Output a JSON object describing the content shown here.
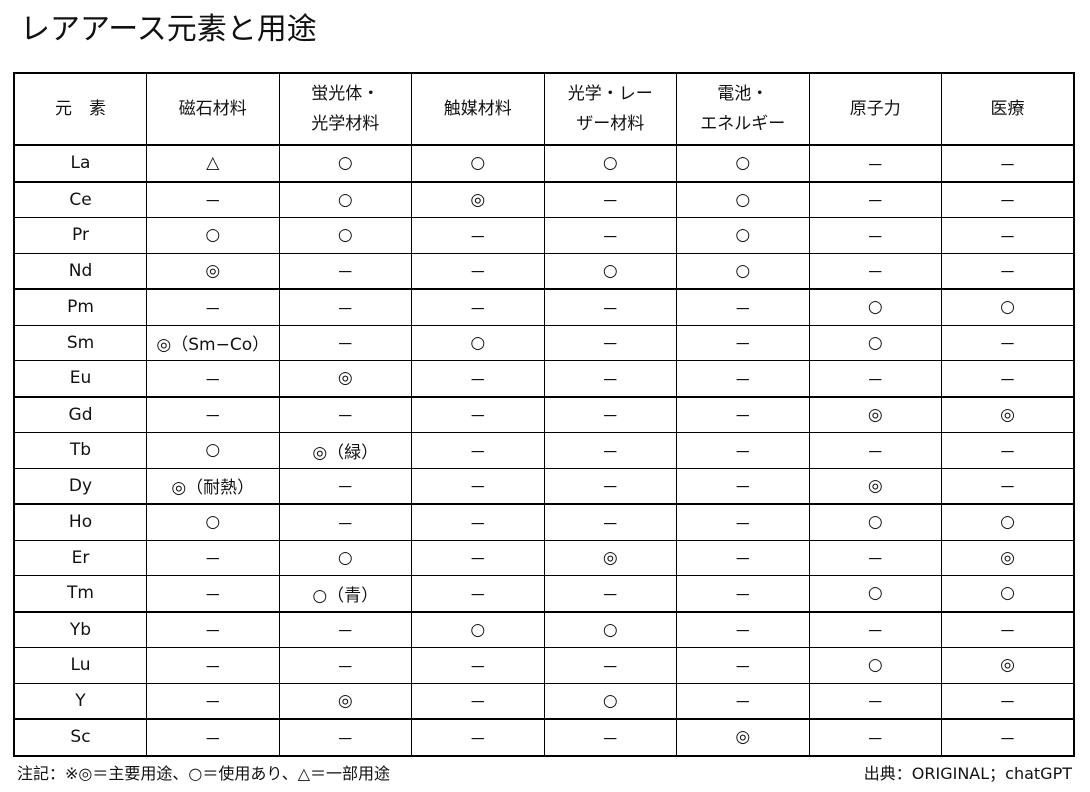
{
  "title": "レアアース元素と用途",
  "headers": [
    "元　素",
    "磁石材料",
    "蛍光体・\n光学材料",
    "触媒材料",
    "光学・レー\nザー材料",
    "電池・\nエネルギー",
    "原子力",
    "医療"
  ],
  "rows": [
    [
      "La",
      "△",
      "○",
      "○",
      "○",
      "○",
      "－",
      "－"
    ],
    [
      "Ce",
      "－",
      "○",
      "◎",
      "－",
      "○",
      "－",
      "－"
    ],
    [
      "Pr",
      "○",
      "○",
      "－",
      "－",
      "○",
      "－",
      "－"
    ],
    [
      "Nd",
      "◎",
      "－",
      "－",
      "○",
      "○",
      "－",
      "－"
    ],
    [
      "Pm",
      "－",
      "－",
      "－",
      "－",
      "－",
      "○",
      "○"
    ],
    [
      "Sm",
      "◎（Sm−Co）",
      "－",
      "○",
      "－",
      "－",
      "○",
      "－"
    ],
    [
      "Eu",
      "－",
      "◎",
      "－",
      "－",
      "－",
      "－",
      "－"
    ],
    [
      "Gd",
      "－",
      "－",
      "－",
      "－",
      "－",
      "◎",
      "◎"
    ],
    [
      "Tb",
      "○",
      "◎（緑）",
      "－",
      "－",
      "－",
      "－",
      "－"
    ],
    [
      "Dy",
      "◎（耐熱）",
      "－",
      "－",
      "－",
      "－",
      "◎",
      "－"
    ],
    [
      "Ho",
      "○",
      "－",
      "－",
      "－",
      "－",
      "○",
      "○"
    ],
    [
      "Er",
      "－",
      "○",
      "－",
      "◎",
      "－",
      "－",
      "◎"
    ],
    [
      "Tm",
      "－",
      "○（青）",
      "－",
      "－",
      "－",
      "○",
      "○"
    ],
    [
      "Yb",
      "－",
      "－",
      "○",
      "○",
      "－",
      "－",
      "－"
    ],
    [
      "Lu",
      "－",
      "－",
      "－",
      "－",
      "－",
      "○",
      "◎"
    ],
    [
      "Y",
      "－",
      "◎",
      "－",
      "○",
      "－",
      "－",
      "－"
    ],
    [
      "Sc",
      "－",
      "－",
      "－",
      "－",
      "◎",
      "－",
      "－"
    ]
  ],
  "note": "注記：※◎＝主要用途、○＝使用あり、△＝一部用途",
  "source": "出典：ORIGINAL；chatGPT"
}
